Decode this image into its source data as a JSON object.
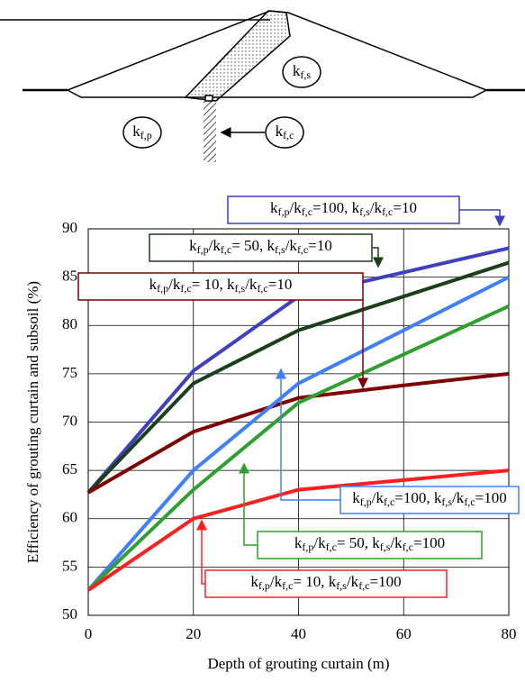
{
  "diagram": {
    "labels": [
      [
        "k",
        "f,s"
      ],
      [
        "k",
        "f,p"
      ],
      [
        "k",
        "f,c"
      ]
    ]
  },
  "chart_data": {
    "type": "line",
    "x_label": "Depth of grouting curtain (m)",
    "y_label": "Efficiency of grouting curtain and subsoil (%)",
    "x": [
      0,
      20,
      40,
      60,
      80
    ],
    "xlim": [
      0,
      80
    ],
    "xticks": [
      0,
      20,
      40,
      60,
      80
    ],
    "ylim": [
      50,
      90
    ],
    "yticks": [
      50,
      55,
      60,
      65,
      70,
      75,
      80,
      85,
      90
    ],
    "grid": true,
    "series": [
      {
        "label": [
          "k",
          "f,p",
          "/k",
          "f,c",
          "=100,  k",
          "f,s",
          "/k",
          "f,c",
          "=10"
        ],
        "color": "#3f3fbf",
        "values": [
          62.7,
          75.3,
          83,
          85.5,
          88
        ]
      },
      {
        "label": [
          "k",
          "f,p",
          "/k",
          "f,c",
          "= 50,  k",
          "f,s",
          "/k",
          "f,c",
          "=10"
        ],
        "color": "#1a3f1a",
        "values": [
          62.7,
          74,
          79.5,
          83,
          86.5
        ]
      },
      {
        "label": [
          "k",
          "f,p",
          "/k",
          "f,c",
          "= 10,  k",
          "f,s",
          "/k",
          "f,c",
          "=10"
        ],
        "color": "#7f0000",
        "values": [
          62.7,
          69,
          72.5,
          73.8,
          75
        ]
      },
      {
        "label": [
          "k",
          "f,p",
          "/k",
          "f,c",
          "=100,  k",
          "f,s",
          "/k",
          "f,c",
          "=100"
        ],
        "color": "#3f7fff",
        "values": [
          52.6,
          65,
          74,
          79.5,
          85
        ]
      },
      {
        "label": [
          "k",
          "f,p",
          "/k",
          "f,c",
          "= 50,  k",
          "f,s",
          "/k",
          "f,c",
          "=100"
        ],
        "color": "#2f9f2f",
        "values": [
          52.6,
          63,
          72,
          77,
          82
        ]
      },
      {
        "label": [
          "k",
          "f,p",
          "/k",
          "f,c",
          "= 10,  k",
          "f,s",
          "/k",
          "f,c",
          "=100"
        ],
        "color": "#ff1f1f",
        "values": [
          52.6,
          60,
          63,
          64,
          65
        ]
      }
    ]
  }
}
